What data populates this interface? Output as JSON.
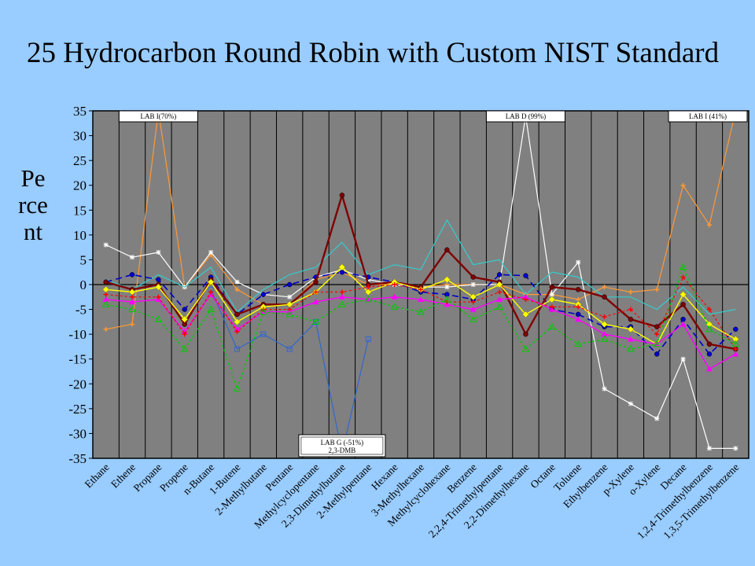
{
  "title": "25 Hydrocarbon Round Robin with Custom NIST Standard",
  "ylabel": "Percent",
  "chart_data": {
    "type": "line",
    "title": "25 Hydrocarbon Round Robin with Custom NIST Standard",
    "ylabel": "Percent",
    "xlabel": "",
    "ylim": [
      -35,
      35
    ],
    "yticks": [
      35,
      30,
      25,
      20,
      15,
      10,
      5,
      0,
      -5,
      -10,
      -15,
      -20,
      -25,
      -30,
      -35
    ],
    "grid": "vertical",
    "categories": [
      "Ethane",
      "Ethene",
      "Propane",
      "Propene",
      "n-Butane",
      "1-Butene",
      "2-Methylbutane",
      "Pentane",
      "Methylcyclopentane",
      "2,3-Dimethylbutane",
      "2-Methylpentane",
      "Hexane",
      "3-Methylhexane",
      "Methylcyclohexane",
      "Benzene",
      "2,2,4-Trimethylpentane",
      "2,2-Dimethylhexane",
      "Octane",
      "Toluene",
      "Ethylbenzene",
      "p-Xylene",
      "o-Xylene",
      "Decane",
      "1,2,4-Trimethylbenzene",
      "1,3,5-Trimethylbenzene"
    ],
    "annotations": [
      {
        "text": "LAB I(70%)",
        "category": "Propane"
      },
      {
        "text": "LAB D (99%)",
        "category": "2,2-Dimethylhexane"
      },
      {
        "text": "LAB I (41%)",
        "category": "1,3,5-Trimethylbenzene"
      },
      {
        "text": "LAB G (-51%)",
        "text2": "2,3-DMB",
        "category": "2,3-Dimethylbutane"
      }
    ],
    "series": [
      {
        "color": "#ff9933",
        "marker": "plus",
        "dash": "",
        "width": 1.2,
        "values": [
          -9,
          -8,
          70,
          -0.5,
          6,
          -1,
          -4,
          -4,
          1,
          2.5,
          0,
          0,
          -0.5,
          0,
          0,
          0,
          -2,
          -2,
          -3,
          -0.5,
          -1.5,
          -1,
          20,
          12,
          41
        ]
      },
      {
        "color": "#ffffff",
        "marker": "star",
        "dash": "",
        "width": 1.2,
        "values": [
          8,
          5.5,
          6.5,
          -0.5,
          6.5,
          0.5,
          -2,
          -2.5,
          1.5,
          3,
          1,
          0,
          -0.5,
          -0.5,
          0,
          0,
          34,
          -2,
          4.5,
          -21,
          -24,
          -27,
          -15,
          -33,
          -33
        ]
      },
      {
        "color": "#33cccc",
        "marker": "none",
        "dash": "",
        "width": 1.2,
        "values": [
          1,
          -1,
          2,
          -0.5,
          3.5,
          -5.5,
          -1,
          2,
          3.5,
          8.5,
          2,
          4,
          3,
          13,
          4,
          5,
          -2,
          2.5,
          1.5,
          -2.5,
          -2.5,
          -5,
          -0.5,
          -6,
          -5
        ]
      },
      {
        "color": "#3366cc",
        "marker": "square",
        "dash": "",
        "width": 1.2,
        "values": [
          null,
          null,
          null,
          null,
          -1,
          -13,
          -10,
          -13,
          -7.5,
          -34,
          -11,
          null,
          null,
          null,
          null,
          null,
          null,
          null,
          null,
          null,
          null,
          null,
          null,
          null,
          null
        ]
      },
      {
        "color": "#0000cc",
        "marker": "circle",
        "dash": "8,5",
        "width": 1.6,
        "values": [
          0.5,
          2,
          1,
          -5,
          1.5,
          -6,
          -2,
          0,
          1.5,
          2.5,
          1.5,
          0.5,
          -1.5,
          -2,
          -3,
          2,
          1.8,
          -5,
          -6,
          -8.5,
          -8.5,
          -14,
          -7,
          -14,
          -9
        ]
      },
      {
        "color": "#800000",
        "marker": "circle",
        "dash": "",
        "width": 2.4,
        "values": [
          0.5,
          -1,
          0,
          -8,
          1,
          -6,
          -4,
          -4,
          0.5,
          18,
          0,
          0.5,
          -0.5,
          7,
          1.5,
          0.5,
          -10,
          -0.5,
          -1,
          -2.5,
          -7,
          -8.5,
          -4,
          -12,
          -13
        ]
      },
      {
        "color": "#ffff00",
        "marker": "diamond",
        "dash": "",
        "width": 1.4,
        "values": [
          -1,
          -1.5,
          -0.5,
          -7,
          0.5,
          -7.5,
          -4.5,
          -4,
          -1.5,
          3.5,
          -1.5,
          0.5,
          -1,
          1,
          -2.5,
          0,
          -6,
          -3,
          -4,
          -8,
          -9,
          -12,
          -2,
          -8,
          -11
        ]
      },
      {
        "color": "#ff00ff",
        "marker": "triangle",
        "dash": "",
        "width": 1.4,
        "values": [
          -3,
          -3.5,
          -3,
          -9.5,
          -2,
          -9,
          -5.5,
          -5.5,
          -3.5,
          -2.5,
          -3,
          -2.5,
          -3,
          -4,
          -5,
          -3,
          -2.5,
          -5,
          -7,
          -10,
          -11,
          -12,
          -8,
          -17,
          -14
        ]
      },
      {
        "color": "#ff0000",
        "marker": "plus",
        "dash": "3,3",
        "width": 1.2,
        "values": [
          -2,
          -2.5,
          -2.5,
          -10,
          -1.5,
          -9.5,
          -5,
          -5,
          -1.5,
          -1.5,
          -0.5,
          0,
          -1,
          -3.5,
          -3.5,
          -1.5,
          -3,
          -4.5,
          -4.5,
          -6.5,
          -5,
          -10,
          1.5,
          -5,
          -13
        ]
      },
      {
        "color": "#00cc00",
        "marker": "triangle-open",
        "dash": "3,3",
        "width": 1.4,
        "values": [
          -4,
          -5,
          -7,
          -13,
          -5,
          -21,
          -5.5,
          -6,
          -7.5,
          -4,
          -3,
          -4.5,
          -5.5,
          -3,
          -7,
          -4.5,
          -13,
          -8.5,
          -12,
          -11,
          -13,
          -12,
          3.5,
          -9,
          -12
        ]
      }
    ]
  }
}
